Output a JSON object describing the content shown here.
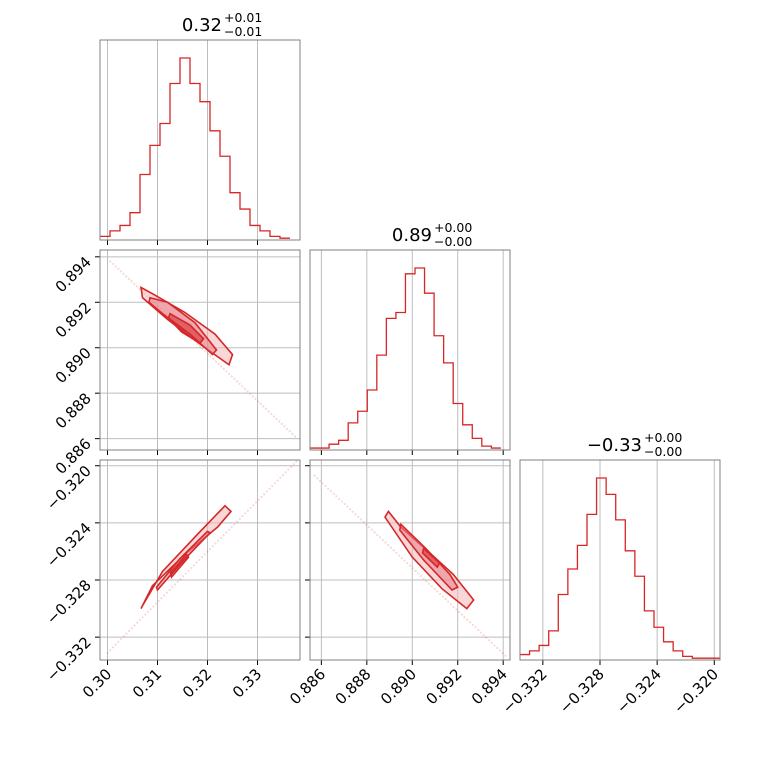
{
  "figure": {
    "color": "#d62728",
    "light_color": "#f3b7b8",
    "mid_color": "#e8808a"
  },
  "params": [
    {
      "name": "p0",
      "title_value": "0.32",
      "title_plus": "+0.01",
      "title_minus": "−0.01",
      "range": [
        0.2985,
        0.3385
      ],
      "ticks": [
        0.3,
        0.31,
        0.32,
        0.33
      ],
      "tick_labels": [
        "0.30",
        "0.31",
        "0.32",
        "0.33"
      ]
    },
    {
      "name": "p1",
      "title_value": "0.89",
      "title_plus": "+0.00",
      "title_minus": "−0.00",
      "range": [
        0.8855,
        0.8943
      ],
      "ticks": [
        0.886,
        0.888,
        0.89,
        0.892,
        0.894
      ],
      "tick_labels": [
        "0.886",
        "0.888",
        "0.890",
        "0.892",
        "0.894"
      ]
    },
    {
      "name": "p2",
      "title_value": "−0.33",
      "title_plus": "+0.00",
      "title_minus": "−0.00",
      "range": [
        -0.3336,
        -0.3196
      ],
      "ticks": [
        -0.332,
        -0.328,
        -0.324,
        -0.32
      ],
      "tick_labels": [
        "−0.332",
        "−0.328",
        "−0.324",
        "−0.320"
      ]
    }
  ],
  "chart_data": {
    "type": "corner",
    "histograms": [
      {
        "param": "p0",
        "edges": [
          0.2985,
          0.3005,
          0.3025,
          0.3045,
          0.3065,
          0.3085,
          0.3105,
          0.3125,
          0.3145,
          0.3165,
          0.3185,
          0.3205,
          0.3225,
          0.3245,
          0.3265,
          0.3285,
          0.3305,
          0.3325,
          0.3345,
          0.3365
        ],
        "counts": [
          2,
          5,
          8,
          15,
          36,
          52,
          64,
          86,
          100,
          86,
          76,
          60,
          46,
          26,
          17,
          8,
          5,
          2,
          1
        ]
      },
      {
        "param": "p1",
        "edges": [
          0.8855,
          0.88592,
          0.88634,
          0.88676,
          0.88718,
          0.8876,
          0.88802,
          0.88844,
          0.88886,
          0.88928,
          0.8897,
          0.89012,
          0.89054,
          0.89096,
          0.89138,
          0.8918,
          0.89222,
          0.89264,
          0.89306,
          0.89348,
          0.8939
        ],
        "counts": [
          1,
          1,
          3,
          5,
          14,
          20,
          31,
          49,
          68,
          71,
          91,
          94,
          81,
          59,
          45,
          24,
          13,
          6,
          2,
          1
        ]
      },
      {
        "param": "p2",
        "edges": [
          -0.3336,
          -0.33293,
          -0.33226,
          -0.33159,
          -0.33092,
          -0.33025,
          -0.32958,
          -0.32891,
          -0.32824,
          -0.32757,
          -0.3269,
          -0.32623,
          -0.32556,
          -0.32489,
          -0.32422,
          -0.32355,
          -0.32288,
          -0.32221,
          -0.32154,
          -0.32087,
          -0.3196
        ],
        "counts": [
          3,
          5,
          8,
          16,
          36,
          50,
          63,
          80,
          100,
          91,
          77,
          60,
          46,
          27,
          18,
          10,
          5,
          2,
          1,
          1
        ]
      }
    ],
    "pairs": [
      {
        "x": "p0",
        "y": "p1",
        "line": [
          [
            0.3006,
            0.8938
          ],
          [
            0.3375,
            0.8861
          ]
        ],
        "contours": [
          [
            [
              0.3067,
              0.89265
            ],
            [
              0.3092,
              0.89235
            ],
            [
              0.3155,
              0.89155
            ],
            [
              0.3215,
              0.8906
            ],
            [
              0.325,
              0.8897
            ],
            [
              0.3243,
              0.88925
            ],
            [
              0.3195,
              0.89
            ],
            [
              0.312,
              0.89125
            ],
            [
              0.307,
              0.8922
            ]
          ],
          [
            [
              0.3085,
              0.8922
            ],
            [
              0.312,
              0.892
            ],
            [
              0.3175,
              0.8911
            ],
            [
              0.3218,
              0.8899
            ],
            [
              0.321,
              0.8897
            ],
            [
              0.3165,
              0.8906
            ],
            [
              0.311,
              0.8915
            ],
            [
              0.3083,
              0.892
            ]
          ],
          [
            [
              0.3125,
              0.8915
            ],
            [
              0.3165,
              0.891
            ],
            [
              0.3192,
              0.8904
            ],
            [
              0.3185,
              0.8902
            ],
            [
              0.3148,
              0.8907
            ],
            [
              0.3122,
              0.8913
            ]
          ]
        ]
      },
      {
        "x": "p0",
        "y": "p2",
        "line": [
          [
            0.3,
            -0.3331
          ],
          [
            0.3378,
            -0.3197
          ]
        ],
        "contours": [
          [
            [
              0.3067,
              -0.33
            ],
            [
              0.309,
              -0.3284
            ],
            [
              0.3155,
              -0.3262
            ],
            [
              0.322,
              -0.3243
            ],
            [
              0.3247,
              -0.3232
            ],
            [
              0.3235,
              -0.3228
            ],
            [
              0.318,
              -0.3248
            ],
            [
              0.311,
              -0.3274
            ],
            [
              0.307,
              -0.3298
            ]
          ],
          [
            [
              0.31,
              -0.3287
            ],
            [
              0.315,
              -0.3267
            ],
            [
              0.3205,
              -0.3247
            ],
            [
              0.32,
              -0.3246
            ],
            [
              0.3145,
              -0.3265
            ],
            [
              0.3098,
              -0.3285
            ]
          ],
          [
            [
              0.3128,
              -0.3278
            ],
            [
              0.3162,
              -0.3264
            ],
            [
              0.3158,
              -0.3262
            ],
            [
              0.3126,
              -0.3275
            ]
          ]
        ]
      },
      {
        "x": "p1",
        "y": "p2",
        "line": [
          [
            0.8857,
            -0.3207
          ],
          [
            0.8941,
            -0.3333
          ]
        ],
        "contours": [
          [
            [
              0.88895,
              -0.3232
            ],
            [
              0.8895,
              -0.3243
            ],
            [
              0.8907,
              -0.326
            ],
            [
              0.8918,
              -0.3276
            ],
            [
              0.8927,
              -0.3294
            ],
            [
              0.8924,
              -0.33
            ],
            [
              0.8913,
              -0.3286
            ],
            [
              0.89,
              -0.3264
            ],
            [
              0.8888,
              -0.3236
            ]
          ],
          [
            [
              0.8895,
              -0.3241
            ],
            [
              0.8906,
              -0.3258
            ],
            [
              0.89165,
              -0.3276
            ],
            [
              0.892,
              -0.3285
            ],
            [
              0.89175,
              -0.3287
            ],
            [
              0.8905,
              -0.3266
            ],
            [
              0.88945,
              -0.3245
            ]
          ],
          [
            [
              0.8905,
              -0.3258
            ],
            [
              0.8912,
              -0.3268
            ],
            [
              0.8911,
              -0.3271
            ],
            [
              0.89045,
              -0.3261
            ]
          ]
        ]
      }
    ]
  }
}
